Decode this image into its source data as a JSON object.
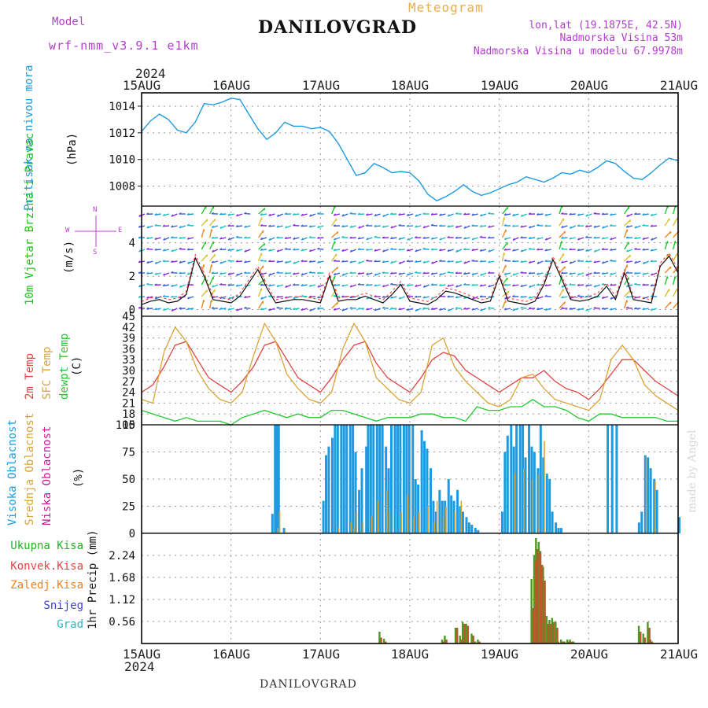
{
  "header": {
    "model_label": "Model",
    "model_name": "wrf-nmm_v3.9.1 e1km",
    "station": "DANILOVGRAD",
    "product": "Meteogram",
    "lonlat": "lon,lat (19.1875E, 42.5N)",
    "elevation": "Nadmorska Visina 53m",
    "model_elevation": "Nadmorska Visina u modelu 67.9978m"
  },
  "footer": {
    "station": "DANILOVGRAD",
    "credit": "made by Angel"
  },
  "colors": {
    "pressure": "#1e9be0",
    "wind_label": "#19c419",
    "temp": "#e24444",
    "sfc": "#d9a437",
    "dew": "#22c92d",
    "high_cloud": "#1e9be0",
    "mid_cloud": "#d9a437",
    "low_cloud": "#cc1a9a",
    "total_precip": "#5a8a2a",
    "convective": "#e24444",
    "frozen": "#f08020",
    "snow": "#4040d0",
    "hail": "#2ab8c8",
    "header_purple": "#b43cd0",
    "product": "#e8b04a"
  },
  "chart_data": [
    {
      "type": "line",
      "panel": "pressure",
      "xticks_top": [
        "15AUG",
        "16AUG",
        "17AUG",
        "18AUG",
        "19AUG",
        "20AUG",
        "21AUG"
      ],
      "year_top": "2024",
      "ylabel": "Pritisak na nivou mora",
      "unit": "(hPa)",
      "ylim": [
        1006.5,
        1015
      ],
      "yticks": [
        "1008",
        "1010",
        "1012",
        "1014"
      ],
      "x": [
        0,
        0.1,
        0.2,
        0.3,
        0.4,
        0.5,
        0.6,
        0.7,
        0.8,
        0.9,
        1,
        1.1,
        1.2,
        1.3,
        1.4,
        1.5,
        1.6,
        1.7,
        1.8,
        1.9,
        2,
        2.1,
        2.2,
        2.3,
        2.4,
        2.5,
        2.6,
        2.7,
        2.8,
        2.9,
        3,
        3.1,
        3.2,
        3.3,
        3.4,
        3.5,
        3.6,
        3.7,
        3.8,
        3.9,
        4,
        4.1,
        4.2,
        4.3,
        4.4,
        4.5,
        4.6,
        4.7,
        4.8,
        4.9,
        5,
        5.1,
        5.2,
        5.3,
        5.4,
        5.5,
        5.6,
        5.7,
        5.8,
        5.9,
        6
      ],
      "values": [
        1012.1,
        1012.9,
        1013.4,
        1013.0,
        1012.2,
        1012.0,
        1012.8,
        1014.2,
        1014.1,
        1014.3,
        1014.6,
        1014.5,
        1013.4,
        1012.3,
        1011.5,
        1012.0,
        1012.8,
        1012.5,
        1012.5,
        1012.3,
        1012.4,
        1012.1,
        1011.2,
        1010.0,
        1008.8,
        1009.0,
        1009.7,
        1009.4,
        1009.0,
        1009.1,
        1009.0,
        1008.4,
        1007.4,
        1006.9,
        1007.2,
        1007.6,
        1008.1,
        1007.6,
        1007.3,
        1007.5,
        1007.8,
        1008.1,
        1008.3,
        1008.7,
        1008.5,
        1008.3,
        1008.6,
        1009.0,
        1008.9,
        1009.2,
        1009.0,
        1009.4,
        1009.9,
        1009.7,
        1009.1,
        1008.6,
        1008.5,
        1009.0,
        1009.6,
        1010.1,
        1009.9
      ],
      "grid": true
    },
    {
      "type": "line",
      "panel": "wind",
      "ylabel": "10m Vjetar Brzina i Pravac",
      "unit": "(m/s)",
      "compass": {
        "north": "N",
        "south": "S",
        "west": "W",
        "east": "E"
      },
      "ylim": [
        -0.4,
        6.2
      ],
      "yticks": [
        "0",
        "2",
        "4"
      ],
      "x": [
        0,
        0.1,
        0.2,
        0.3,
        0.4,
        0.5,
        0.6,
        0.7,
        0.8,
        0.9,
        1,
        1.1,
        1.2,
        1.3,
        1.4,
        1.5,
        1.6,
        1.7,
        1.8,
        1.9,
        2,
        2.1,
        2.2,
        2.3,
        2.4,
        2.5,
        2.6,
        2.7,
        2.8,
        2.9,
        3,
        3.1,
        3.2,
        3.3,
        3.4,
        3.5,
        3.6,
        3.7,
        3.8,
        3.9,
        4,
        4.1,
        4.2,
        4.3,
        4.4,
        4.5,
        4.6,
        4.7,
        4.8,
        4.9,
        5,
        5.1,
        5.2,
        5.3,
        5.4,
        5.5,
        5.6,
        5.7,
        5.8,
        5.9,
        6
      ],
      "speed": [
        0.3,
        0.5,
        0.6,
        0.4,
        0.5,
        0.9,
        3.1,
        2.0,
        0.6,
        0.5,
        0.4,
        0.8,
        1.6,
        2.4,
        1.3,
        0.4,
        0.5,
        0.6,
        0.6,
        0.5,
        0.4,
        2.0,
        0.5,
        0.6,
        0.6,
        0.8,
        0.6,
        0.4,
        0.9,
        1.5,
        0.5,
        0.4,
        0.3,
        0.6,
        1.1,
        1.0,
        0.8,
        0.6,
        0.4,
        0.5,
        2.0,
        0.5,
        0.4,
        0.3,
        0.5,
        1.5,
        3.0,
        1.8,
        0.6,
        0.5,
        0.6,
        0.8,
        1.4,
        0.6,
        2.2,
        0.6,
        0.5,
        0.4,
        2.6,
        3.2,
        2.2
      ],
      "grid": true
    },
    {
      "type": "line",
      "panel": "temperature",
      "ylabels": [
        "2m Temp",
        "SFC Temp",
        "dewpt Temp"
      ],
      "unit": "(C)",
      "ylim": [
        15,
        45
      ],
      "yticks": [
        "15",
        "18",
        "21",
        "24",
        "27",
        "30",
        "33",
        "36",
        "39",
        "42",
        "45"
      ],
      "x": [
        0,
        0.125,
        0.25,
        0.375,
        0.5,
        0.625,
        0.75,
        0.875,
        1,
        1.125,
        1.25,
        1.375,
        1.5,
        1.625,
        1.75,
        1.875,
        2,
        2.125,
        2.25,
        2.375,
        2.5,
        2.625,
        2.75,
        2.875,
        3,
        3.125,
        3.25,
        3.375,
        3.5,
        3.625,
        3.75,
        3.875,
        4,
        4.125,
        4.25,
        4.375,
        4.5,
        4.625,
        4.75,
        4.875,
        5,
        5.125,
        5.25,
        5.375,
        5.5,
        5.625,
        5.75,
        5.875,
        6
      ],
      "series": [
        {
          "name": "2m Temp",
          "values": [
            24,
            26,
            31,
            37,
            38,
            33,
            28,
            26,
            24,
            27,
            31,
            37,
            38,
            33,
            28,
            26,
            24,
            28,
            33,
            37,
            38,
            32,
            28,
            26,
            24,
            28,
            33,
            35,
            34,
            30,
            28,
            26,
            24,
            26,
            28,
            28,
            30,
            27,
            25,
            24,
            22,
            25,
            29,
            33,
            33,
            30,
            27,
            25,
            23
          ]
        },
        {
          "name": "SFC Temp",
          "values": [
            22,
            21,
            35,
            42,
            38,
            30,
            25,
            22,
            21,
            24,
            34,
            43,
            38,
            29,
            25,
            22,
            21,
            24,
            36,
            43,
            38,
            28,
            25,
            22,
            21,
            24,
            37,
            39,
            31,
            27,
            24,
            21,
            20,
            22,
            28,
            29,
            25,
            22,
            21,
            20,
            19,
            22,
            33,
            37,
            33,
            26,
            23,
            21,
            19
          ]
        },
        {
          "name": "dewpt Temp",
          "values": [
            19,
            18,
            17,
            16,
            17,
            16,
            16,
            16,
            15,
            17,
            18,
            19,
            18,
            17,
            18,
            17,
            17,
            19,
            19,
            18,
            17,
            16,
            17,
            17,
            17,
            18,
            18,
            17,
            17,
            16,
            20,
            19,
            19,
            20,
            20,
            22,
            20,
            20,
            19,
            17,
            16,
            18,
            18,
            17,
            17,
            17,
            17,
            16,
            16
          ]
        }
      ],
      "grid": true
    },
    {
      "type": "bar",
      "panel": "cloud",
      "ylabels": [
        "Visoka Oblacnost",
        "Srednja Oblacnost",
        "Niska Oblacnost"
      ],
      "unit": "(%)",
      "ylim": [
        0,
        100
      ],
      "yticks": [
        "0",
        "25",
        "50",
        "75",
        "100"
      ],
      "x": [
        1.45,
        1.48,
        1.5,
        1.52,
        1.55,
        1.58,
        2.02,
        2.05,
        2.08,
        2.12,
        2.15,
        2.18,
        2.22,
        2.25,
        2.28,
        2.32,
        2.35,
        2.38,
        2.42,
        2.45,
        2.5,
        2.52,
        2.55,
        2.58,
        2.62,
        2.65,
        2.68,
        2.72,
        2.75,
        2.78,
        2.82,
        2.85,
        2.88,
        2.92,
        2.95,
        2.98,
        3.02,
        3.05,
        3.08,
        3.12,
        3.15,
        3.18,
        3.22,
        3.25,
        3.28,
        3.32,
        3.35,
        3.38,
        3.42,
        3.45,
        3.48,
        3.52,
        3.55,
        3.58,
        3.62,
        3.65,
        3.68,
        3.72,
        3.75,
        4.02,
        4.05,
        4.08,
        4.12,
        4.15,
        4.18,
        4.22,
        4.25,
        4.28,
        4.32,
        4.35,
        4.38,
        4.42,
        4.45,
        4.48,
        4.52,
        4.55,
        4.58,
        4.62,
        4.65,
        4.68,
        5.2,
        5.25,
        5.3,
        5.55,
        5.58,
        5.62,
        5.65,
        5.68,
        5.72,
        5.75,
        6
      ],
      "series": [
        {
          "name": "Visoka Oblacnost",
          "values": [
            18,
            100,
            100,
            100,
            0,
            5,
            30,
            72,
            80,
            88,
            100,
            100,
            100,
            100,
            100,
            100,
            100,
            75,
            40,
            60,
            80,
            100,
            100,
            100,
            100,
            100,
            100,
            80,
            60,
            100,
            100,
            100,
            100,
            100,
            100,
            100,
            100,
            50,
            45,
            95,
            85,
            78,
            60,
            30,
            20,
            40,
            30,
            30,
            50,
            35,
            30,
            40,
            25,
            20,
            15,
            10,
            8,
            5,
            3,
            20,
            75,
            90,
            100,
            80,
            100,
            100,
            100,
            70,
            100,
            80,
            75,
            60,
            100,
            70,
            55,
            50,
            20,
            10,
            5,
            5,
            100,
            100,
            100,
            10,
            20,
            72,
            70,
            60,
            50,
            40,
            15
          ]
        },
        {
          "name": "Srednja Oblacnost",
          "values": [
            0,
            0,
            5,
            20,
            0,
            3,
            0,
            0,
            0,
            0,
            0,
            5,
            0,
            0,
            0,
            10,
            5,
            20,
            0,
            10,
            0,
            0,
            15,
            0,
            30,
            0,
            0,
            40,
            20,
            0,
            0,
            0,
            20,
            0,
            35,
            0,
            15,
            0,
            20,
            0,
            0,
            25,
            0,
            10,
            30,
            0,
            15,
            25,
            0,
            0,
            20,
            0,
            30,
            0,
            0,
            0,
            0,
            0,
            0,
            0,
            0,
            0,
            0,
            55,
            0,
            0,
            60,
            0,
            0,
            50,
            0,
            55,
            0,
            85,
            0,
            0,
            0,
            0,
            0,
            0,
            0,
            0,
            0,
            0,
            0,
            70,
            0,
            0,
            48,
            0,
            0
          ]
        },
        {
          "name": "Niska Oblacnost",
          "values": [
            0,
            0,
            0,
            0,
            0,
            0,
            0,
            0,
            0,
            0,
            0,
            0,
            0,
            0,
            0,
            0,
            0,
            0,
            0,
            0,
            0,
            0,
            0,
            0,
            0,
            0,
            0,
            0,
            0,
            0,
            0,
            0,
            0,
            0,
            0,
            0,
            0,
            0,
            0,
            0,
            0,
            0,
            0,
            0,
            0,
            0,
            0,
            0,
            0,
            0,
            0,
            0,
            0,
            0,
            0,
            0,
            0,
            0,
            0,
            0,
            0,
            0,
            0,
            0,
            0,
            0,
            0,
            0,
            0,
            0,
            0,
            0,
            0,
            0,
            0,
            0,
            0,
            0,
            0,
            0,
            0,
            0,
            0,
            0,
            0,
            0,
            0,
            0,
            0,
            0,
            0
          ]
        }
      ],
      "grid": true
    },
    {
      "type": "bar",
      "panel": "precipitation",
      "ylabels": [
        "Ukupna Kisa",
        "Konvek.Kisa",
        "Zaledj.Kisa",
        "Snijeg",
        "Grad"
      ],
      "ylabel": "1hr Precip (mm)",
      "ylim": [
        0,
        2.8
      ],
      "yticks": [
        "0.56",
        "1.12",
        "1.68",
        "2.24"
      ],
      "xticks_bottom": [
        "15AUG",
        "16AUG",
        "17AUG",
        "18AUG",
        "19AUG",
        "20AUG",
        "21AUG"
      ],
      "year_bottom": "2024",
      "x": [
        1.1,
        2.65,
        2.7,
        3.35,
        3.38,
        3.5,
        3.55,
        3.58,
        3.62,
        3.68,
        3.72,
        3.75,
        4.35,
        4.38,
        4.4,
        4.43,
        4.45,
        4.48,
        4.52,
        4.55,
        4.58,
        4.62,
        4.65,
        4.68,
        4.72,
        4.75,
        4.78,
        4.82,
        5.55,
        5.6,
        5.65,
        5.68
      ],
      "series": [
        {
          "name": "Ukupna Kisa",
          "values": [
            0.01,
            0.3,
            0.12,
            0.1,
            0.2,
            0.4,
            0.2,
            0.55,
            0.5,
            0.25,
            0.05,
            0.1,
            1.64,
            2.25,
            2.68,
            2.58,
            2.35,
            1.95,
            0.7,
            0.6,
            0.65,
            0.55,
            0.05,
            0.1,
            0.05,
            0.1,
            0.1,
            0.05,
            0.45,
            0.25,
            0.55,
            0.1
          ]
        },
        {
          "name": "Konvek.Kisa",
          "values": [
            0.0,
            0.15,
            0.05,
            0.05,
            0.1,
            0.4,
            0.1,
            0.5,
            0.45,
            0.2,
            0.0,
            0.05,
            0.9,
            2.1,
            2.4,
            2.3,
            2.0,
            1.6,
            0.5,
            0.5,
            0.55,
            0.4,
            0.0,
            0.05,
            0.0,
            0.05,
            0.05,
            0.0,
            0.3,
            0.15,
            0.4,
            0.05
          ]
        }
      ],
      "grid": true
    }
  ]
}
